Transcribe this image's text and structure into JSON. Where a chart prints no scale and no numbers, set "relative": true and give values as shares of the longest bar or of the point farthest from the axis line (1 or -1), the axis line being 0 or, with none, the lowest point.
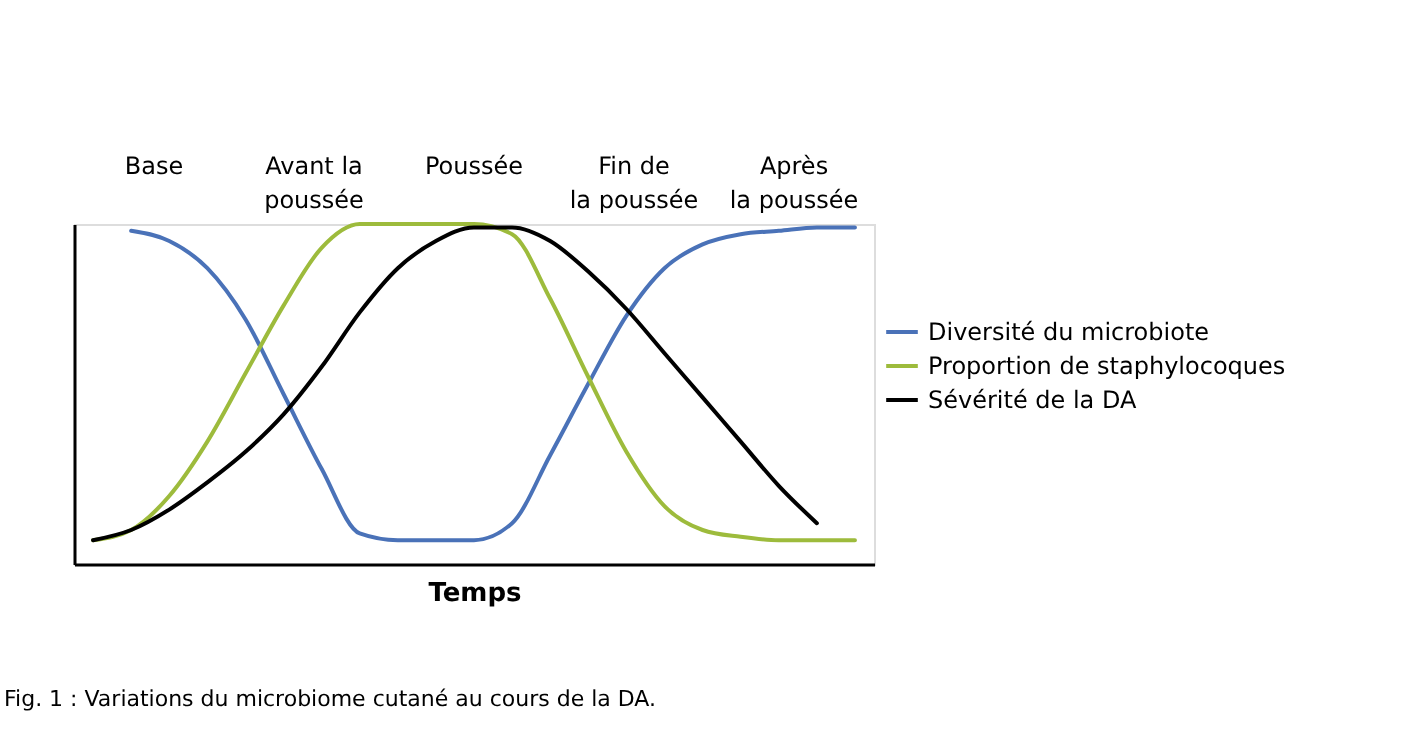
{
  "chart_data": {
    "type": "line",
    "relative": true,
    "xlabel": "Temps",
    "legend": "right",
    "marker": "none",
    "line_style": "solid",
    "grid": false,
    "tick_labels": false,
    "categories": [
      null,
      null,
      null,
      null,
      null,
      null,
      null,
      null,
      null,
      null,
      null,
      null,
      null,
      null,
      null,
      null,
      null,
      null,
      null,
      null,
      null
    ],
    "series": [
      {
        "name": "Diversité du microbiote",
        "color": "#4a72b8",
        "values": [
          null,
          0.98,
          0.95,
          0.87,
          0.72,
          0.5,
          0.28,
          0.09,
          0.07,
          0.07,
          0.07,
          0.12,
          0.32,
          0.53,
          0.73,
          0.87,
          0.94,
          0.97,
          0.98,
          0.99,
          0.99
        ]
      },
      {
        "name": "Proportion de staphylocoques",
        "color": "#9dbb3c",
        "values": [
          0.07,
          0.1,
          0.2,
          0.36,
          0.56,
          0.76,
          0.93,
          1,
          1,
          1,
          1,
          0.97,
          0.78,
          0.55,
          0.33,
          0.17,
          0.1,
          0.08,
          0.07,
          0.07,
          0.07
        ]
      },
      {
        "name": "Sévérité de la DA",
        "color": "#000000",
        "values": [
          0.07,
          0.1,
          0.16,
          0.24,
          0.33,
          0.44,
          0.58,
          0.74,
          0.87,
          0.95,
          0.99,
          0.99,
          0.95,
          0.86,
          0.75,
          0.62,
          0.49,
          0.36,
          0.23,
          0.12,
          null
        ]
      }
    ],
    "annotations": [
      "Base",
      "Avant la\npoussée",
      "Poussée",
      "Fin de\nla poussée",
      "Après\nla poussée",
      "Fig. 1 : Variations du microbiome cutané au cours de la DA."
    ]
  }
}
